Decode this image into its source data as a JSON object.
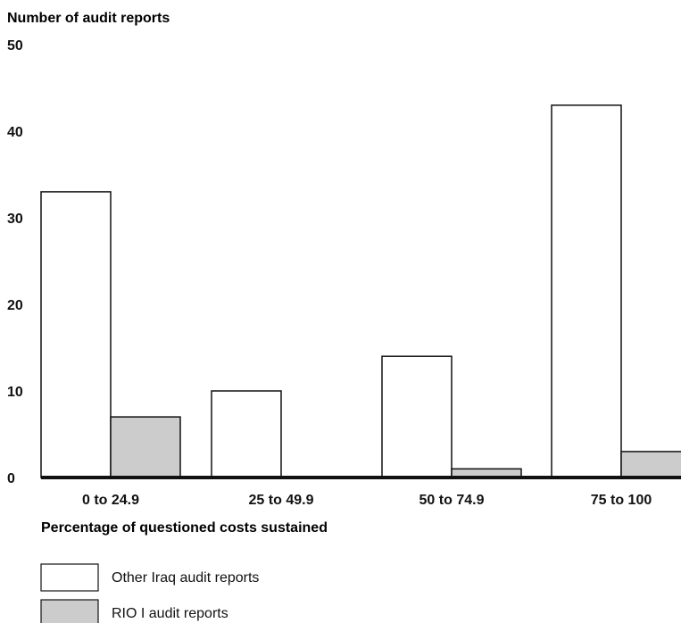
{
  "chart_data": {
    "type": "bar",
    "title": "",
    "ylabel": "Number of audit reports",
    "xlabel": "Percentage of questioned costs sustained",
    "categories": [
      "0 to 24.9",
      "25 to 49.9",
      "50 to 74.9",
      "75 to 100"
    ],
    "series": [
      {
        "name": "Other Iraq audit reports",
        "values": [
          33,
          10,
          14,
          43
        ],
        "color": "#ffffff"
      },
      {
        "name": "RIO I audit reports",
        "values": [
          7,
          0,
          1,
          3
        ],
        "color": "#cccccc"
      }
    ],
    "ylim": [
      0,
      50
    ],
    "yticks": [
      0,
      10,
      20,
      30,
      40,
      50
    ],
    "grid": false,
    "legend": "bottom-left"
  }
}
